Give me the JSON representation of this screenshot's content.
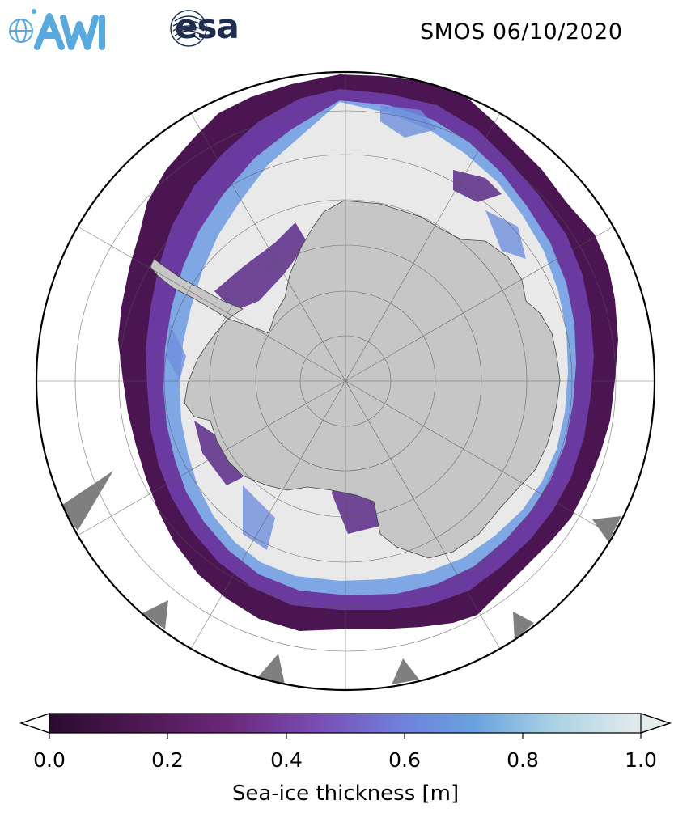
{
  "header": {
    "title": "SMOS 06/10/2020",
    "logos": [
      "AWI",
      "esa"
    ]
  },
  "map": {
    "projection": "south-polar-stereographic",
    "region": "Antarctica",
    "variable": "Sea-ice thickness",
    "colors": {
      "land": "#c6c6c6",
      "thick_ice": "#e9e9e9",
      "missing": "#7f7f7f",
      "outline": "#000000"
    }
  },
  "colorbar": {
    "label": "Sea-ice thickness [m]",
    "ticks": [
      "0.0",
      "0.2",
      "0.4",
      "0.6",
      "0.8",
      "1.0"
    ],
    "range": [
      0.0,
      1.0
    ],
    "extend": "both",
    "colormap": [
      "#2a0c2f",
      "#5a1a5e",
      "#7a3a9a",
      "#7c6ad0",
      "#6f9ae3",
      "#90c3e0",
      "#c9e3e6",
      "#e9eeee"
    ]
  }
}
